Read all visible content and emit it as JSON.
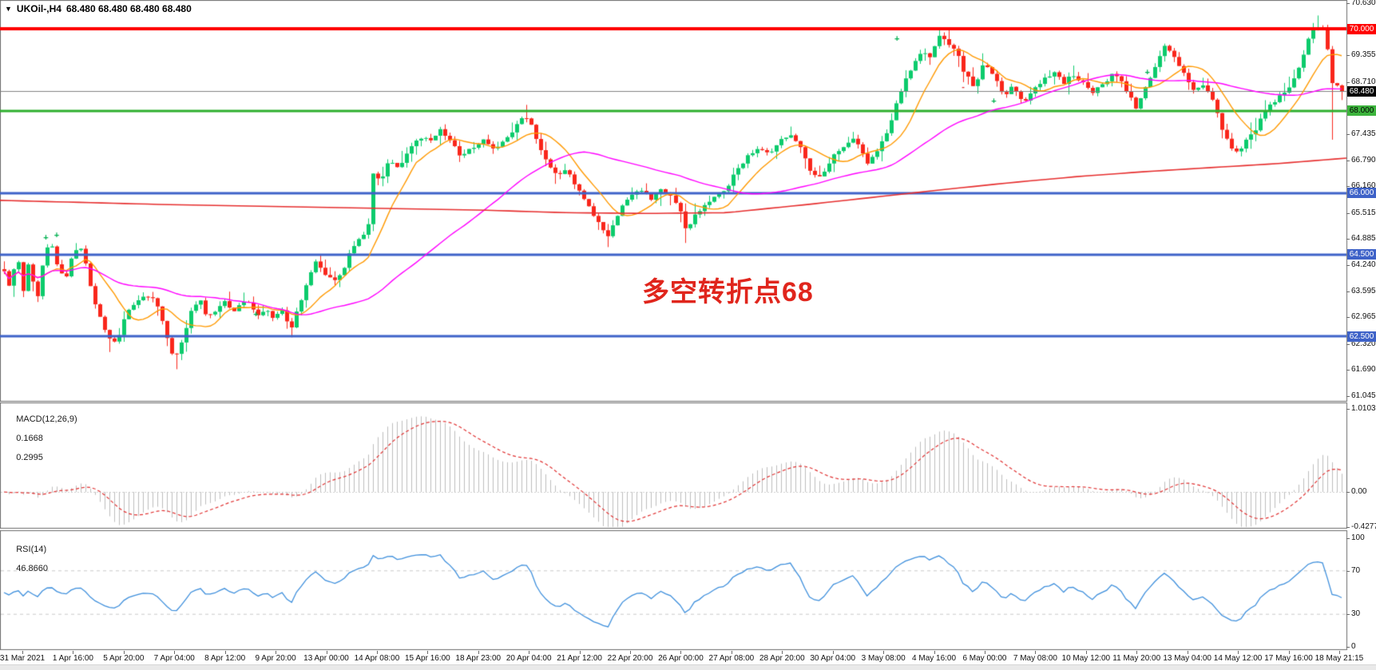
{
  "header": {
    "dropdown_icon": "▼",
    "symbol_timeframe": "UKOil-,H4",
    "quotes": "68.480 68.480 68.480 68.480"
  },
  "main_chart": {
    "annotation": {
      "text": "多空转折点68",
      "color": "#E0251C"
    },
    "price_scale": {
      "ticks": [
        {
          "label": "70.630",
          "value": 70.63
        },
        {
          "label": "69.355",
          "value": 69.355
        },
        {
          "label": "68.710",
          "value": 68.71
        },
        {
          "label": "67.435",
          "value": 67.435
        },
        {
          "label": "66.790",
          "value": 66.79
        },
        {
          "label": "66.160",
          "value": 66.16
        },
        {
          "label": "65.515",
          "value": 65.515
        },
        {
          "label": "64.885",
          "value": 64.885
        },
        {
          "label": "64.240",
          "value": 64.24
        },
        {
          "label": "63.595",
          "value": 63.595
        },
        {
          "label": "62.965",
          "value": 62.965
        },
        {
          "label": "62.320",
          "value": 62.32
        },
        {
          "label": "61.690",
          "value": 61.69
        },
        {
          "label": "61.045",
          "value": 61.045
        }
      ],
      "badges": [
        {
          "label": "70.000",
          "value": 70.0,
          "bg": "#FF0000",
          "fg": "#FFFFFF"
        },
        {
          "label": "68.480",
          "value": 68.48,
          "bg": "#000000",
          "fg": "#FFFFFF"
        },
        {
          "label": "68.000",
          "value": 68.0,
          "bg": "#3CB43C",
          "fg": "#000000"
        },
        {
          "label": "66.000",
          "value": 66.0,
          "bg": "#3E62C8",
          "fg": "#FFFFFF"
        },
        {
          "label": "64.500",
          "value": 64.5,
          "bg": "#3E62C8",
          "fg": "#FFFFFF"
        },
        {
          "label": "62.500",
          "value": 62.5,
          "bg": "#3E62C8",
          "fg": "#FFFFFF"
        }
      ]
    }
  },
  "indicators": {
    "macd": {
      "name_label": "MACD(12,26,9)",
      "value_main": "0.1668",
      "value_signal": "0.2995",
      "scale_ticks": [
        {
          "label": "1.0103",
          "value": 1.0103
        },
        {
          "label": "0.00",
          "value": 0
        },
        {
          "label": "-0.4277",
          "value": -0.4277
        }
      ]
    },
    "rsi": {
      "name_label": "RSI(14)",
      "value": "46.8660",
      "scale_ticks": [
        {
          "label": "100",
          "value": 100
        },
        {
          "label": "70",
          "value": 70
        },
        {
          "label": "30",
          "value": 30
        },
        {
          "label": "0",
          "value": 0
        }
      ],
      "levels": [
        70,
        30
      ]
    }
  },
  "time_axis": {
    "labels": [
      "31 Mar 2021",
      "1 Apr 16:00",
      "5 Apr 20:00",
      "7 Apr 04:00",
      "8 Apr 12:00",
      "9 Apr 20:00",
      "13 Apr 00:00",
      "14 Apr 08:00",
      "15 Apr 16:00",
      "18 Apr 23:00",
      "20 Apr 04:00",
      "21 Apr 12:00",
      "22 Apr 20:00",
      "26 Apr 00:00",
      "27 Apr 08:00",
      "28 Apr 20:00",
      "30 Apr 04:00",
      "3 May 08:00",
      "4 May 16:00",
      "6 May 00:00",
      "7 May 08:00",
      "10 May 12:00",
      "11 May 20:00",
      "13 May 04:00",
      "14 May 12:00",
      "17 May 16:00",
      "18 May 21:15"
    ]
  },
  "colors": {
    "bull": "#0CCB6C",
    "bear": "#F9261B",
    "ma_fast": "#FF9900",
    "ma_medium": "#FF00FF",
    "ma_slow": "#E62E2E",
    "hline_red": "#FF0000",
    "hline_green": "#2FAF2F",
    "hline_blue": "#3E62C8",
    "current_price_line": "#808080",
    "macd_histogram": "#BDBDBD",
    "macd_signal": "#E03131",
    "rsi_line": "#3E8FDC",
    "rsi_levels": "#C8C8C8",
    "panel_border": "#6b6b6b",
    "marker_green": "#00B050",
    "marker_red": "#E03131"
  },
  "chart_data": [
    {
      "type": "candlestick",
      "symbol": "UKOil-",
      "timeframe": "H4",
      "bars": 280,
      "ylim": [
        60.96,
        70.67
      ],
      "current_price": 68.48,
      "levels": [
        {
          "price": 70.0,
          "color": "#FF0000",
          "width": 4
        },
        {
          "price": 68.0,
          "color": "#2FAF2F",
          "width": 3
        },
        {
          "price": 66.0,
          "color": "#3E62C8",
          "width": 3
        },
        {
          "price": 64.5,
          "color": "#3E62C8",
          "width": 3
        },
        {
          "price": 62.5,
          "color": "#3E62C8",
          "width": 3
        }
      ],
      "close_path": [
        [
          0.0,
          64.1
        ],
        [
          0.004,
          63.7
        ],
        [
          0.01,
          64.45
        ],
        [
          0.014,
          63.55
        ],
        [
          0.018,
          64.3
        ],
        [
          0.025,
          63.45
        ],
        [
          0.03,
          64.55
        ],
        [
          0.036,
          64.75
        ],
        [
          0.04,
          64.2
        ],
        [
          0.046,
          63.85
        ],
        [
          0.052,
          64.6
        ],
        [
          0.058,
          64.7
        ],
        [
          0.064,
          63.8
        ],
        [
          0.07,
          63.1
        ],
        [
          0.078,
          62.45
        ],
        [
          0.084,
          62.3
        ],
        [
          0.09,
          62.95
        ],
        [
          0.096,
          63.25
        ],
        [
          0.104,
          63.5
        ],
        [
          0.112,
          63.4
        ],
        [
          0.118,
          62.95
        ],
        [
          0.124,
          62.15
        ],
        [
          0.128,
          61.95
        ],
        [
          0.134,
          62.5
        ],
        [
          0.14,
          63.1
        ],
        [
          0.146,
          63.4
        ],
        [
          0.152,
          62.95
        ],
        [
          0.158,
          63.15
        ],
        [
          0.164,
          63.35
        ],
        [
          0.172,
          63.1
        ],
        [
          0.178,
          63.4
        ],
        [
          0.184,
          63.3
        ],
        [
          0.19,
          63.0
        ],
        [
          0.196,
          63.15
        ],
        [
          0.202,
          62.95
        ],
        [
          0.208,
          63.1
        ],
        [
          0.214,
          62.65
        ],
        [
          0.22,
          63.2
        ],
        [
          0.227,
          63.9
        ],
        [
          0.233,
          64.3
        ],
        [
          0.24,
          64.05
        ],
        [
          0.247,
          63.85
        ],
        [
          0.254,
          64.15
        ],
        [
          0.26,
          64.65
        ],
        [
          0.266,
          64.9
        ],
        [
          0.272,
          65.1
        ],
        [
          0.276,
          66.45
        ],
        [
          0.282,
          66.3
        ],
        [
          0.288,
          66.8
        ],
        [
          0.295,
          66.55
        ],
        [
          0.302,
          67.05
        ],
        [
          0.31,
          67.4
        ],
        [
          0.318,
          67.25
        ],
        [
          0.326,
          67.55
        ],
        [
          0.334,
          67.3
        ],
        [
          0.342,
          66.85
        ],
        [
          0.35,
          67.1
        ],
        [
          0.358,
          67.3
        ],
        [
          0.366,
          67.05
        ],
        [
          0.374,
          67.3
        ],
        [
          0.382,
          67.6
        ],
        [
          0.39,
          67.9
        ],
        [
          0.396,
          67.5
        ],
        [
          0.404,
          66.85
        ],
        [
          0.412,
          66.45
        ],
        [
          0.42,
          66.55
        ],
        [
          0.428,
          66.15
        ],
        [
          0.436,
          65.7
        ],
        [
          0.444,
          65.3
        ],
        [
          0.452,
          64.95
        ],
        [
          0.46,
          65.55
        ],
        [
          0.468,
          65.9
        ],
        [
          0.476,
          66.1
        ],
        [
          0.484,
          65.8
        ],
        [
          0.492,
          66.1
        ],
        [
          0.5,
          65.9
        ],
        [
          0.506,
          65.55
        ],
        [
          0.51,
          65.05
        ],
        [
          0.516,
          65.45
        ],
        [
          0.524,
          65.75
        ],
        [
          0.532,
          65.9
        ],
        [
          0.54,
          66.15
        ],
        [
          0.548,
          66.6
        ],
        [
          0.556,
          66.9
        ],
        [
          0.564,
          67.1
        ],
        [
          0.572,
          66.9
        ],
        [
          0.58,
          67.3
        ],
        [
          0.588,
          67.45
        ],
        [
          0.596,
          67.05
        ],
        [
          0.604,
          66.45
        ],
        [
          0.61,
          66.35
        ],
        [
          0.618,
          66.85
        ],
        [
          0.626,
          67.1
        ],
        [
          0.634,
          67.3
        ],
        [
          0.64,
          67.1
        ],
        [
          0.646,
          66.65
        ],
        [
          0.652,
          67.05
        ],
        [
          0.66,
          67.5
        ],
        [
          0.666,
          68.1
        ],
        [
          0.672,
          68.65
        ],
        [
          0.68,
          69.15
        ],
        [
          0.686,
          69.5
        ],
        [
          0.692,
          69.3
        ],
        [
          0.698,
          69.85
        ],
        [
          0.704,
          69.7
        ],
        [
          0.712,
          69.4
        ],
        [
          0.718,
          68.9
        ],
        [
          0.726,
          68.55
        ],
        [
          0.732,
          69.2
        ],
        [
          0.74,
          68.85
        ],
        [
          0.748,
          68.35
        ],
        [
          0.754,
          68.65
        ],
        [
          0.762,
          68.15
        ],
        [
          0.77,
          68.55
        ],
        [
          0.778,
          68.8
        ],
        [
          0.786,
          69.0
        ],
        [
          0.792,
          68.7
        ],
        [
          0.8,
          68.9
        ],
        [
          0.808,
          68.6
        ],
        [
          0.814,
          68.45
        ],
        [
          0.822,
          68.7
        ],
        [
          0.83,
          68.95
        ],
        [
          0.838,
          68.55
        ],
        [
          0.846,
          68.1
        ],
        [
          0.852,
          68.45
        ],
        [
          0.86,
          69.1
        ],
        [
          0.868,
          69.6
        ],
        [
          0.874,
          69.35
        ],
        [
          0.882,
          68.9
        ],
        [
          0.89,
          68.5
        ],
        [
          0.898,
          68.6
        ],
        [
          0.904,
          68.25
        ],
        [
          0.912,
          67.4
        ],
        [
          0.92,
          66.95
        ],
        [
          0.928,
          67.25
        ],
        [
          0.936,
          67.6
        ],
        [
          0.944,
          68.05
        ],
        [
          0.952,
          68.3
        ],
        [
          0.96,
          68.55
        ],
        [
          0.966,
          68.95
        ],
        [
          0.972,
          69.45
        ],
        [
          0.978,
          70.0
        ],
        [
          0.983,
          70.1
        ],
        [
          0.988,
          69.9
        ],
        [
          0.992,
          68.7
        ],
        [
          0.996,
          68.6
        ],
        [
          1.0,
          68.48
        ]
      ],
      "spikes": [
        {
          "f": 0.128,
          "low": 61.7
        },
        {
          "f": 0.08,
          "low": 62.12
        },
        {
          "f": 0.214,
          "low": 62.48
        },
        {
          "f": 0.452,
          "low": 64.68
        },
        {
          "f": 0.51,
          "low": 64.78
        },
        {
          "f": 0.39,
          "high": 68.15
        },
        {
          "f": 0.588,
          "high": 67.62
        },
        {
          "f": 0.698,
          "high": 70.02
        },
        {
          "f": 0.983,
          "high": 70.33
        },
        {
          "f": 0.992,
          "low": 67.3
        }
      ],
      "ma_overlays": [
        {
          "name": "fast",
          "color": "#FF9900",
          "window": 10
        },
        {
          "name": "medium",
          "color": "#FF00FF",
          "window": 45
        },
        {
          "name": "slow",
          "color": "#E62E2E",
          "path": [
            [
              0.0,
              65.82
            ],
            [
              0.12,
              65.72
            ],
            [
              0.24,
              65.65
            ],
            [
              0.36,
              65.58
            ],
            [
              0.42,
              65.52
            ],
            [
              0.48,
              65.5
            ],
            [
              0.54,
              65.52
            ],
            [
              0.6,
              65.72
            ],
            [
              0.65,
              65.9
            ],
            [
              0.7,
              66.08
            ],
            [
              0.75,
              66.25
            ],
            [
              0.8,
              66.4
            ],
            [
              0.85,
              66.52
            ],
            [
              0.9,
              66.62
            ],
            [
              0.95,
              66.72
            ],
            [
              1.0,
              66.85
            ]
          ]
        }
      ],
      "trade_markers": [
        {
          "f": 0.034,
          "price": 64.92,
          "glyph": "+",
          "color": "#00B050"
        },
        {
          "f": 0.042,
          "price": 64.98,
          "glyph": "+",
          "color": "#00B050"
        },
        {
          "f": 0.19,
          "price": 63.05,
          "glyph": "+",
          "color": "#00B050"
        },
        {
          "f": 0.666,
          "price": 69.78,
          "glyph": "+",
          "color": "#00B050"
        },
        {
          "f": 0.716,
          "price": 68.6,
          "glyph": "-",
          "color": "#E03131"
        },
        {
          "f": 0.738,
          "price": 68.25,
          "glyph": "+",
          "color": "#00B050"
        },
        {
          "f": 0.852,
          "price": 68.95,
          "glyph": "+",
          "color": "#00B050"
        }
      ]
    },
    {
      "type": "bar",
      "name": "MACD",
      "params": "12,26,9",
      "ylim": [
        -0.4277,
        1.0103
      ],
      "derived_from": "candlestick closes: MACD = EMA12 - EMA26, signal = EMA9(MACD), histogram = MACD line",
      "last_values": {
        "macd": 0.1668,
        "signal": 0.2995
      }
    },
    {
      "type": "line",
      "name": "RSI",
      "params": "14",
      "ylim": [
        0,
        100
      ],
      "levels": [
        70,
        30
      ],
      "derived_from": "candlestick closes: Wilder RSI(14)",
      "last_value": 46.866
    }
  ]
}
